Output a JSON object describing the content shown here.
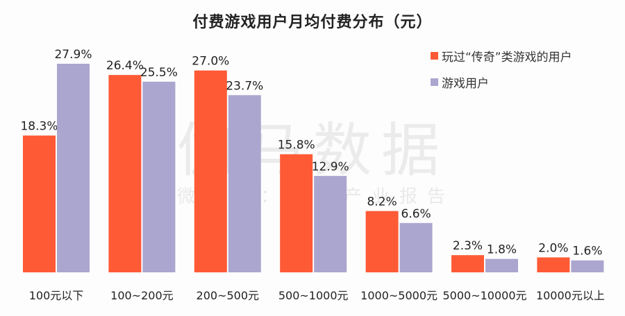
{
  "chart_data": {
    "type": "bar",
    "title": "付费游戏用户月均付费分布（元）",
    "categories": [
      "100元以下",
      "100~200元",
      "200~500元",
      "500~1000元",
      "1000~5000元",
      "5000~10000元",
      "10000元以上"
    ],
    "series": [
      {
        "name": "玩过“传奇”类游戏的用户",
        "color": "#ff5a36",
        "values": [
          18.3,
          26.4,
          27.0,
          15.8,
          8.2,
          2.3,
          2.0
        ]
      },
      {
        "name": "游戏用户",
        "color": "#aba6cf",
        "values": [
          27.9,
          25.5,
          23.7,
          12.9,
          6.6,
          1.8,
          1.6
        ]
      }
    ],
    "data_labels": [
      [
        "18.3%",
        "26.4%",
        "27.0%",
        "15.8%",
        "8.2%",
        "2.3%",
        "2.0%"
      ],
      [
        "27.9%",
        "25.5%",
        "23.7%",
        "12.9%",
        "6.6%",
        "1.8%",
        "1.6%"
      ]
    ],
    "ylim": [
      0,
      28
    ],
    "grid": false,
    "legend_position": "top-right"
  },
  "watermark": {
    "logo": "伽马数据",
    "sub": "微信号：游戏产业报告"
  }
}
